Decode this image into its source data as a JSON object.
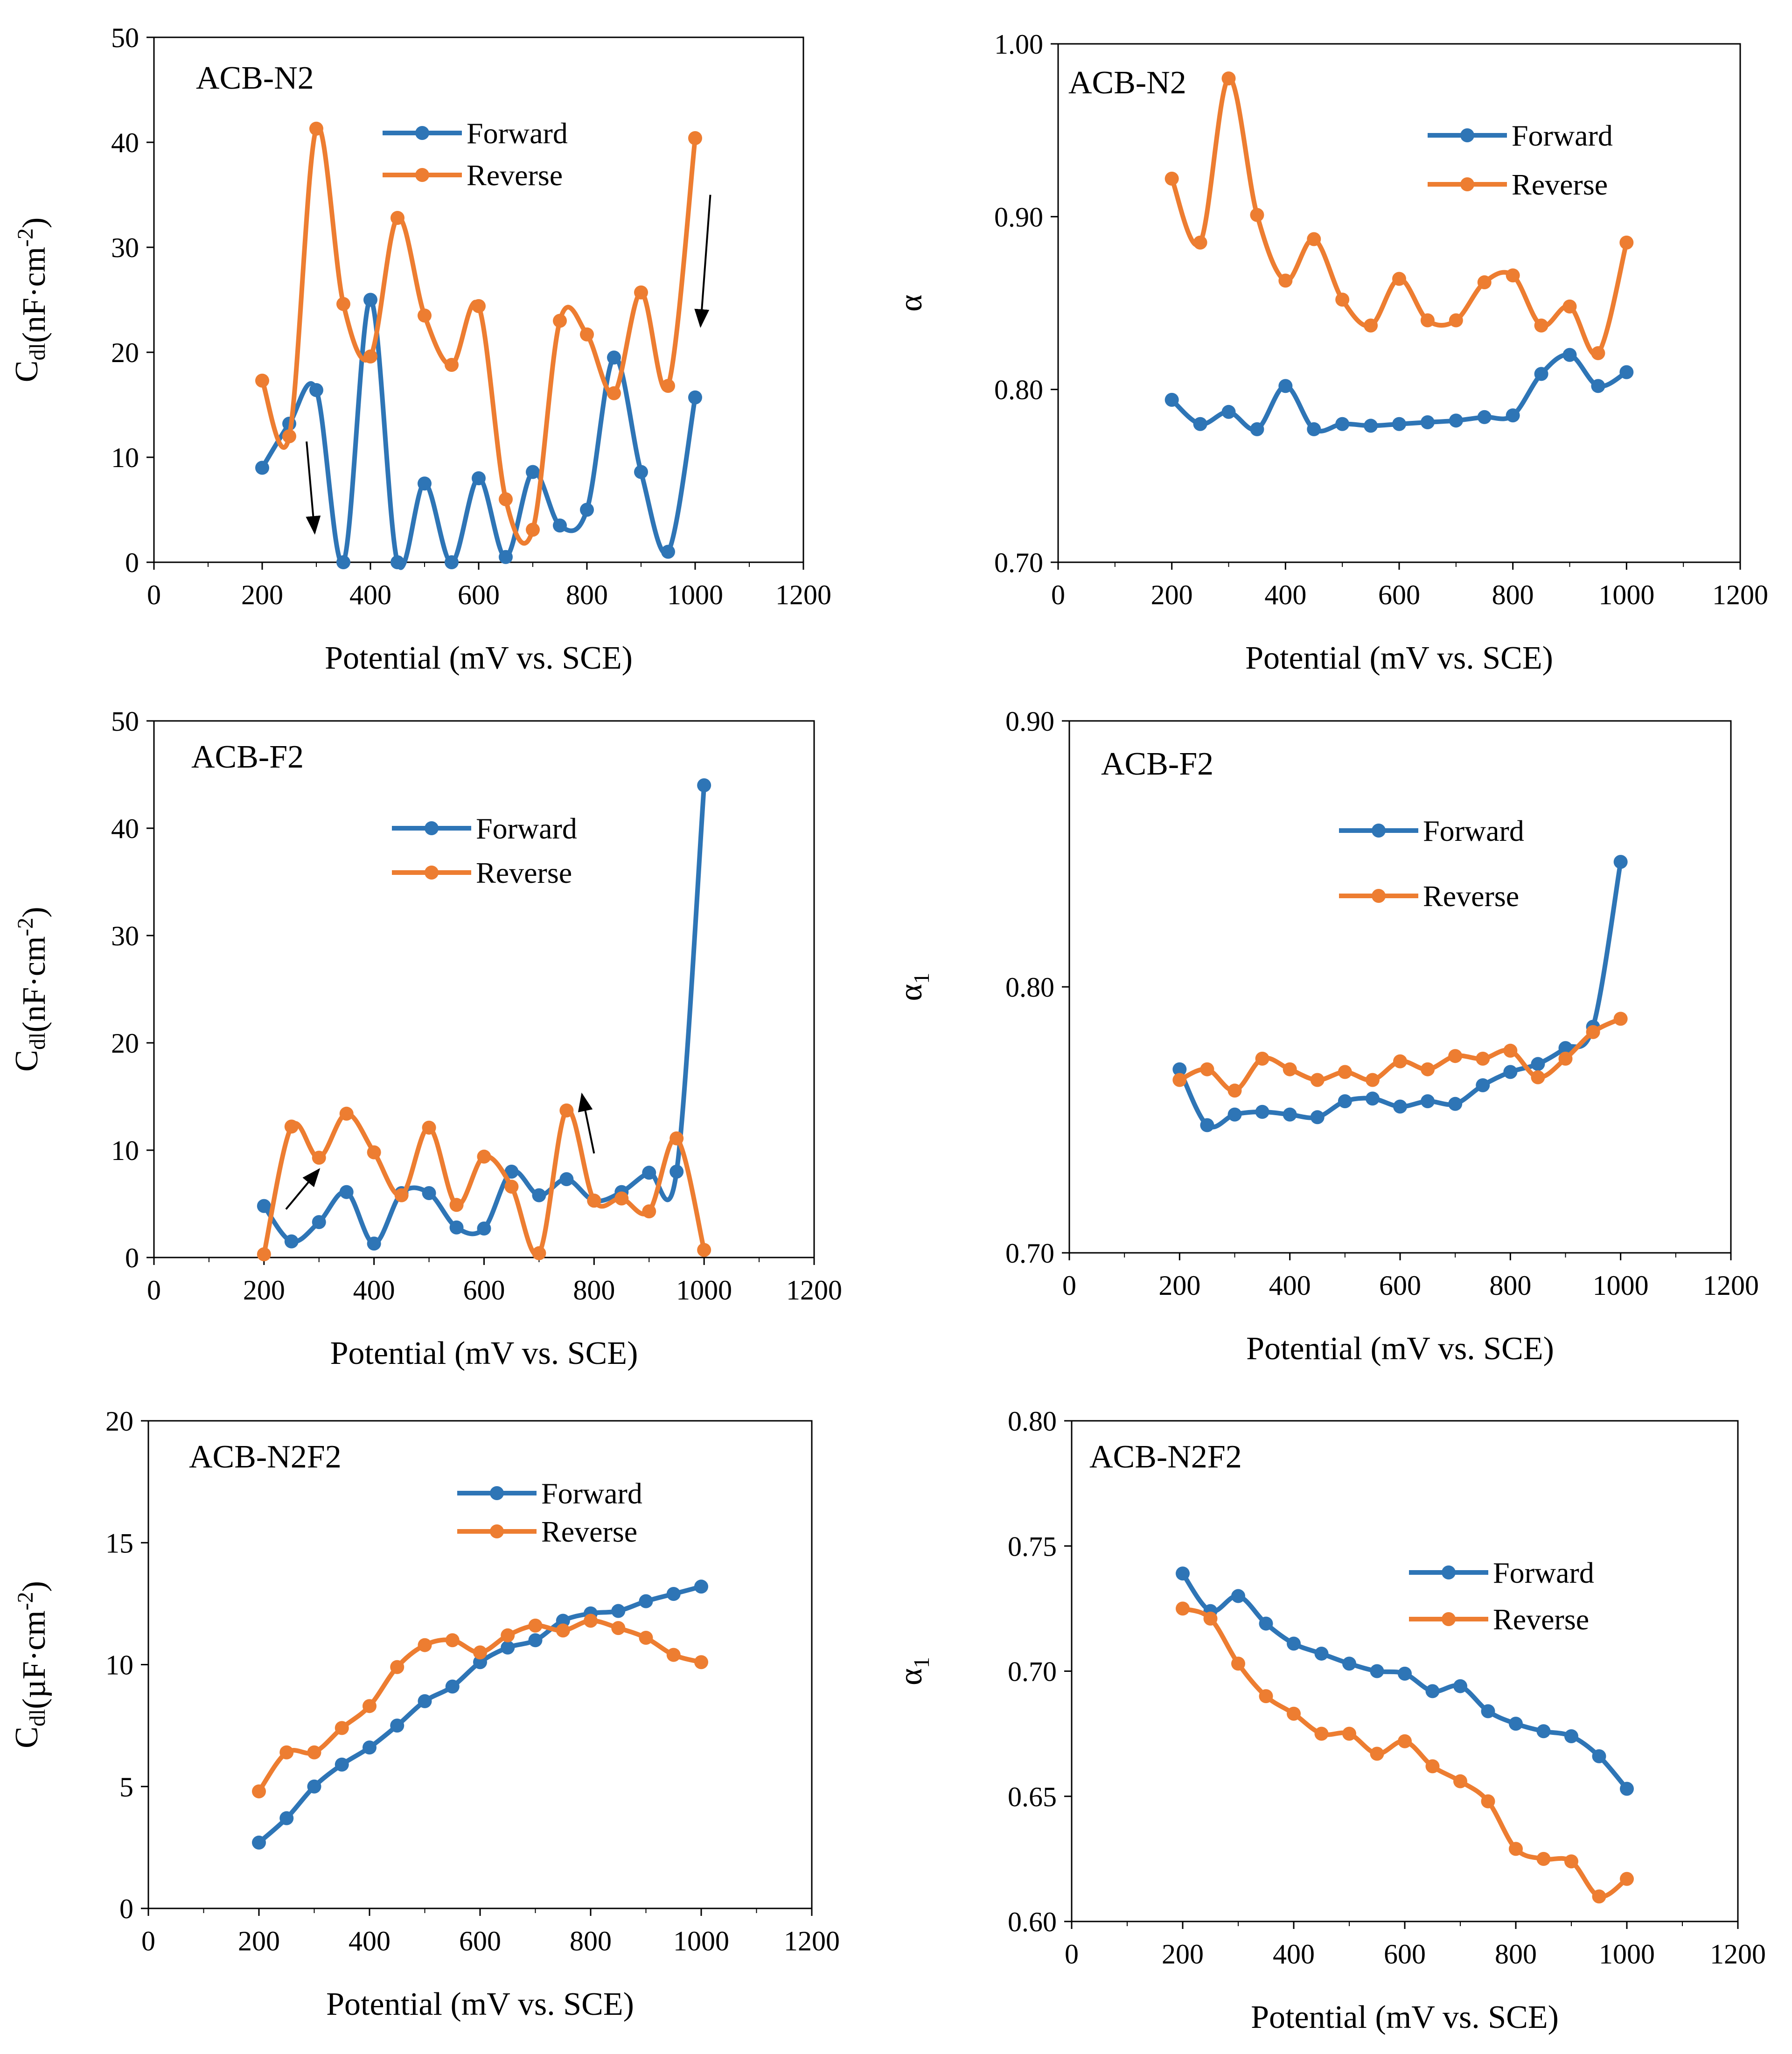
{
  "figure": {
    "colors": {
      "forward": "#2E75B6",
      "reverse": "#ED7D31",
      "axis": "#000000",
      "background": "#ffffff"
    }
  },
  "chart_data": [
    {
      "id": "n2-cdl",
      "type": "line",
      "title": "ACB-N2",
      "xlabel": "Potential (mV vs. SCE)",
      "ylabel": {
        "main": "C",
        "sub": "dl",
        "rest": "(nF·cm",
        "sup": "-2",
        "end": ")"
      },
      "xlim": [
        0,
        1200
      ],
      "ylim": [
        0,
        50
      ],
      "xticks": [
        0,
        200,
        400,
        600,
        800,
        1000,
        1200
      ],
      "xtick_labels": [
        "0",
        "200",
        "400",
        "600",
        "800",
        "1000",
        "1200"
      ],
      "yticks": [
        0,
        10,
        20,
        30,
        40,
        50
      ],
      "ytick_labels": [
        "0",
        "10",
        "20",
        "30",
        "40",
        "50"
      ],
      "legend": [
        "Forward",
        "Reverse"
      ],
      "legend_position": "top-center",
      "x": [
        200,
        250,
        300,
        350,
        400,
        450,
        500,
        550,
        600,
        650,
        700,
        750,
        800,
        850,
        900,
        950,
        1000
      ],
      "series": [
        {
          "name": "Forward",
          "values": [
            9,
            13.2,
            16.4,
            0,
            25,
            0,
            7.5,
            0,
            8,
            0.5,
            8.6,
            3.5,
            5,
            19.5,
            8.6,
            1,
            15.7
          ]
        },
        {
          "name": "Reverse",
          "values": [
            17.3,
            12,
            41.3,
            24.6,
            19.6,
            32.8,
            23.5,
            18.8,
            24.4,
            6,
            3.1,
            23,
            21.7,
            16.1,
            25.7,
            16.8,
            40.4
          ]
        }
      ],
      "arrows": [
        {
          "from": [
            282,
            11.5
          ],
          "to": [
            297,
            2.8
          ]
        },
        {
          "from": [
            1028,
            35
          ],
          "to": [
            1010,
            22.5
          ]
        }
      ]
    },
    {
      "id": "n2-alpha",
      "type": "line",
      "title": "ACB-N2",
      "xlabel": "Potential (mV vs. SCE)",
      "ylabel": {
        "main": "α",
        "sub": "",
        "rest": "",
        "sup": "",
        "end": ""
      },
      "xlim": [
        0,
        1200
      ],
      "ylim": [
        0.7,
        1.0
      ],
      "xticks": [
        0,
        200,
        400,
        600,
        800,
        1000,
        1200
      ],
      "xtick_labels": [
        "0",
        "200",
        "400",
        "600",
        "800",
        "1000",
        "1200"
      ],
      "yticks": [
        0.7,
        0.8,
        0.9,
        1.0
      ],
      "ytick_labels": [
        "0.70",
        "0.80",
        "0.90",
        "1.00"
      ],
      "legend": [
        "Forward",
        "Reverse"
      ],
      "legend_position": "top-right",
      "x": [
        200,
        250,
        300,
        350,
        400,
        450,
        500,
        550,
        600,
        650,
        700,
        750,
        800,
        850,
        900,
        950,
        1000
      ],
      "series": [
        {
          "name": "Forward",
          "values": [
            0.794,
            0.78,
            0.787,
            0.777,
            0.802,
            0.777,
            0.78,
            0.779,
            0.78,
            0.781,
            0.782,
            0.784,
            0.785,
            0.809,
            0.82,
            0.802,
            0.81
          ]
        },
        {
          "name": "Reverse",
          "values": [
            0.922,
            0.885,
            0.98,
            0.901,
            0.863,
            0.887,
            0.852,
            0.837,
            0.864,
            0.84,
            0.84,
            0.862,
            0.866,
            0.837,
            0.848,
            0.821,
            0.885
          ]
        }
      ],
      "arrows": []
    },
    {
      "id": "f2-cdl",
      "type": "line",
      "title": "ACB-F2",
      "xlabel": "Potential (mV vs. SCE)",
      "ylabel": {
        "main": "C",
        "sub": "dl",
        "rest": "(nF·cm",
        "sup": "-2",
        "end": ")"
      },
      "xlim": [
        0,
        1200
      ],
      "ylim": [
        0,
        50
      ],
      "xticks": [
        0,
        200,
        400,
        600,
        800,
        1000,
        1200
      ],
      "xtick_labels": [
        "0",
        "200",
        "400",
        "600",
        "800",
        "1000",
        "1200"
      ],
      "yticks": [
        0,
        10,
        20,
        30,
        40,
        50
      ],
      "ytick_labels": [
        "0",
        "10",
        "20",
        "30",
        "40",
        "50"
      ],
      "legend": [
        "Forward",
        "Reverse"
      ],
      "legend_position": "top-center",
      "x": [
        200,
        250,
        300,
        350,
        400,
        450,
        500,
        550,
        600,
        650,
        700,
        750,
        800,
        850,
        900,
        950,
        1000
      ],
      "series": [
        {
          "name": "Forward",
          "values": [
            4.8,
            1.5,
            3.3,
            6.1,
            1.3,
            6,
            6,
            2.8,
            2.7,
            8,
            5.8,
            7.3,
            5.3,
            6.1,
            7.9,
            8,
            44
          ]
        },
        {
          "name": "Reverse",
          "values": [
            0.3,
            12.2,
            9.3,
            13.4,
            9.8,
            5.8,
            12.1,
            4.9,
            9.4,
            6.6,
            0.4,
            13.7,
            5.3,
            5.5,
            4.3,
            11.1,
            0.7
          ]
        }
      ],
      "arrows": [
        {
          "from": [
            240,
            4.5
          ],
          "to": [
            300,
            8.2
          ]
        },
        {
          "from": [
            800,
            9.7
          ],
          "to": [
            778,
            15.2
          ]
        }
      ]
    },
    {
      "id": "f2-alpha",
      "type": "line",
      "title": "ACB-F2",
      "xlabel": "Potential (mV vs. SCE)",
      "ylabel": {
        "main": "α",
        "sub": "1",
        "rest": "",
        "sup": "",
        "end": ""
      },
      "xlim": [
        0,
        1200
      ],
      "ylim": [
        0.7,
        0.9
      ],
      "xticks": [
        0,
        200,
        400,
        600,
        800,
        1000,
        1200
      ],
      "xtick_labels": [
        "0",
        "200",
        "400",
        "600",
        "800",
        "1000",
        "1200"
      ],
      "yticks": [
        0.7,
        0.8,
        0.9
      ],
      "ytick_labels": [
        "0.70",
        "0.80",
        "0.90"
      ],
      "legend": [
        "Forward",
        "Reverse"
      ],
      "legend_position": "top-right",
      "x": [
        200,
        250,
        300,
        350,
        400,
        450,
        500,
        550,
        600,
        650,
        700,
        750,
        800,
        850,
        900,
        950,
        1000
      ],
      "series": [
        {
          "name": "Forward",
          "values": [
            0.769,
            0.748,
            0.752,
            0.753,
            0.752,
            0.751,
            0.757,
            0.758,
            0.755,
            0.757,
            0.756,
            0.763,
            0.768,
            0.771,
            0.777,
            0.785,
            0.847
          ]
        },
        {
          "name": "Reverse",
          "values": [
            0.765,
            0.769,
            0.761,
            0.773,
            0.769,
            0.765,
            0.768,
            0.765,
            0.772,
            0.769,
            0.774,
            0.773,
            0.776,
            0.766,
            0.773,
            0.783,
            0.788
          ]
        }
      ],
      "arrows": []
    },
    {
      "id": "n2f2-cdl",
      "type": "line",
      "title": "ACB-N2F2",
      "xlabel": "Potential (mV vs. SCE)",
      "ylabel": {
        "main": "C",
        "sub": "dl",
        "rest": "(µF·cm",
        "sup": "-2",
        "end": ")"
      },
      "xlim": [
        0,
        1200
      ],
      "ylim": [
        0,
        20
      ],
      "xticks": [
        0,
        200,
        400,
        600,
        800,
        1000,
        1200
      ],
      "xtick_labels": [
        "0",
        "200",
        "400",
        "600",
        "800",
        "1000",
        "1200"
      ],
      "yticks": [
        0,
        5,
        10,
        15,
        20
      ],
      "ytick_labels": [
        "0",
        "5",
        "10",
        "15",
        "20"
      ],
      "legend": [
        "Forward",
        "Reverse"
      ],
      "legend_position": "top-center",
      "x": [
        200,
        250,
        300,
        350,
        400,
        450,
        500,
        550,
        600,
        650,
        700,
        750,
        800,
        850,
        900,
        950,
        1000
      ],
      "series": [
        {
          "name": "Forward",
          "values": [
            2.7,
            3.7,
            5,
            5.9,
            6.6,
            7.5,
            8.5,
            9.1,
            10.1,
            10.7,
            11,
            11.8,
            12.1,
            12.2,
            12.6,
            12.9,
            13.2
          ]
        },
        {
          "name": "Reverse",
          "values": [
            4.8,
            6.4,
            6.4,
            7.4,
            8.3,
            9.9,
            10.8,
            11,
            10.5,
            11.2,
            11.6,
            11.4,
            11.8,
            11.5,
            11.1,
            10.4,
            10.1
          ]
        }
      ],
      "arrows": []
    },
    {
      "id": "n2f2-alpha",
      "type": "line",
      "title": "ACB-N2F2",
      "xlabel": "Potential (mV vs. SCE)",
      "ylabel": {
        "main": "α",
        "sub": "1",
        "rest": "",
        "sup": "",
        "end": ""
      },
      "xlim": [
        0,
        1200
      ],
      "ylim": [
        0.6,
        0.8
      ],
      "xticks": [
        0,
        200,
        400,
        600,
        800,
        1000,
        1200
      ],
      "xtick_labels": [
        "0",
        "200",
        "400",
        "600",
        "800",
        "1000",
        "1200"
      ],
      "yticks": [
        0.6,
        0.65,
        0.7,
        0.75,
        0.8
      ],
      "ytick_labels": [
        "0.60",
        "0.65",
        "0.70",
        "0.75",
        "0.80"
      ],
      "legend": [
        "Forward",
        "Reverse"
      ],
      "legend_position": "top-right",
      "x": [
        200,
        250,
        300,
        350,
        400,
        450,
        500,
        550,
        600,
        650,
        700,
        750,
        800,
        850,
        900,
        950,
        1000
      ],
      "series": [
        {
          "name": "Forward",
          "values": [
            0.739,
            0.724,
            0.73,
            0.719,
            0.711,
            0.707,
            0.703,
            0.7,
            0.699,
            0.692,
            0.694,
            0.684,
            0.679,
            0.676,
            0.674,
            0.666,
            0.653
          ]
        },
        {
          "name": "Reverse",
          "values": [
            0.725,
            0.721,
            0.703,
            0.69,
            0.683,
            0.675,
            0.675,
            0.667,
            0.672,
            0.662,
            0.656,
            0.648,
            0.629,
            0.625,
            0.624,
            0.61,
            0.617
          ]
        }
      ],
      "arrows": []
    }
  ]
}
